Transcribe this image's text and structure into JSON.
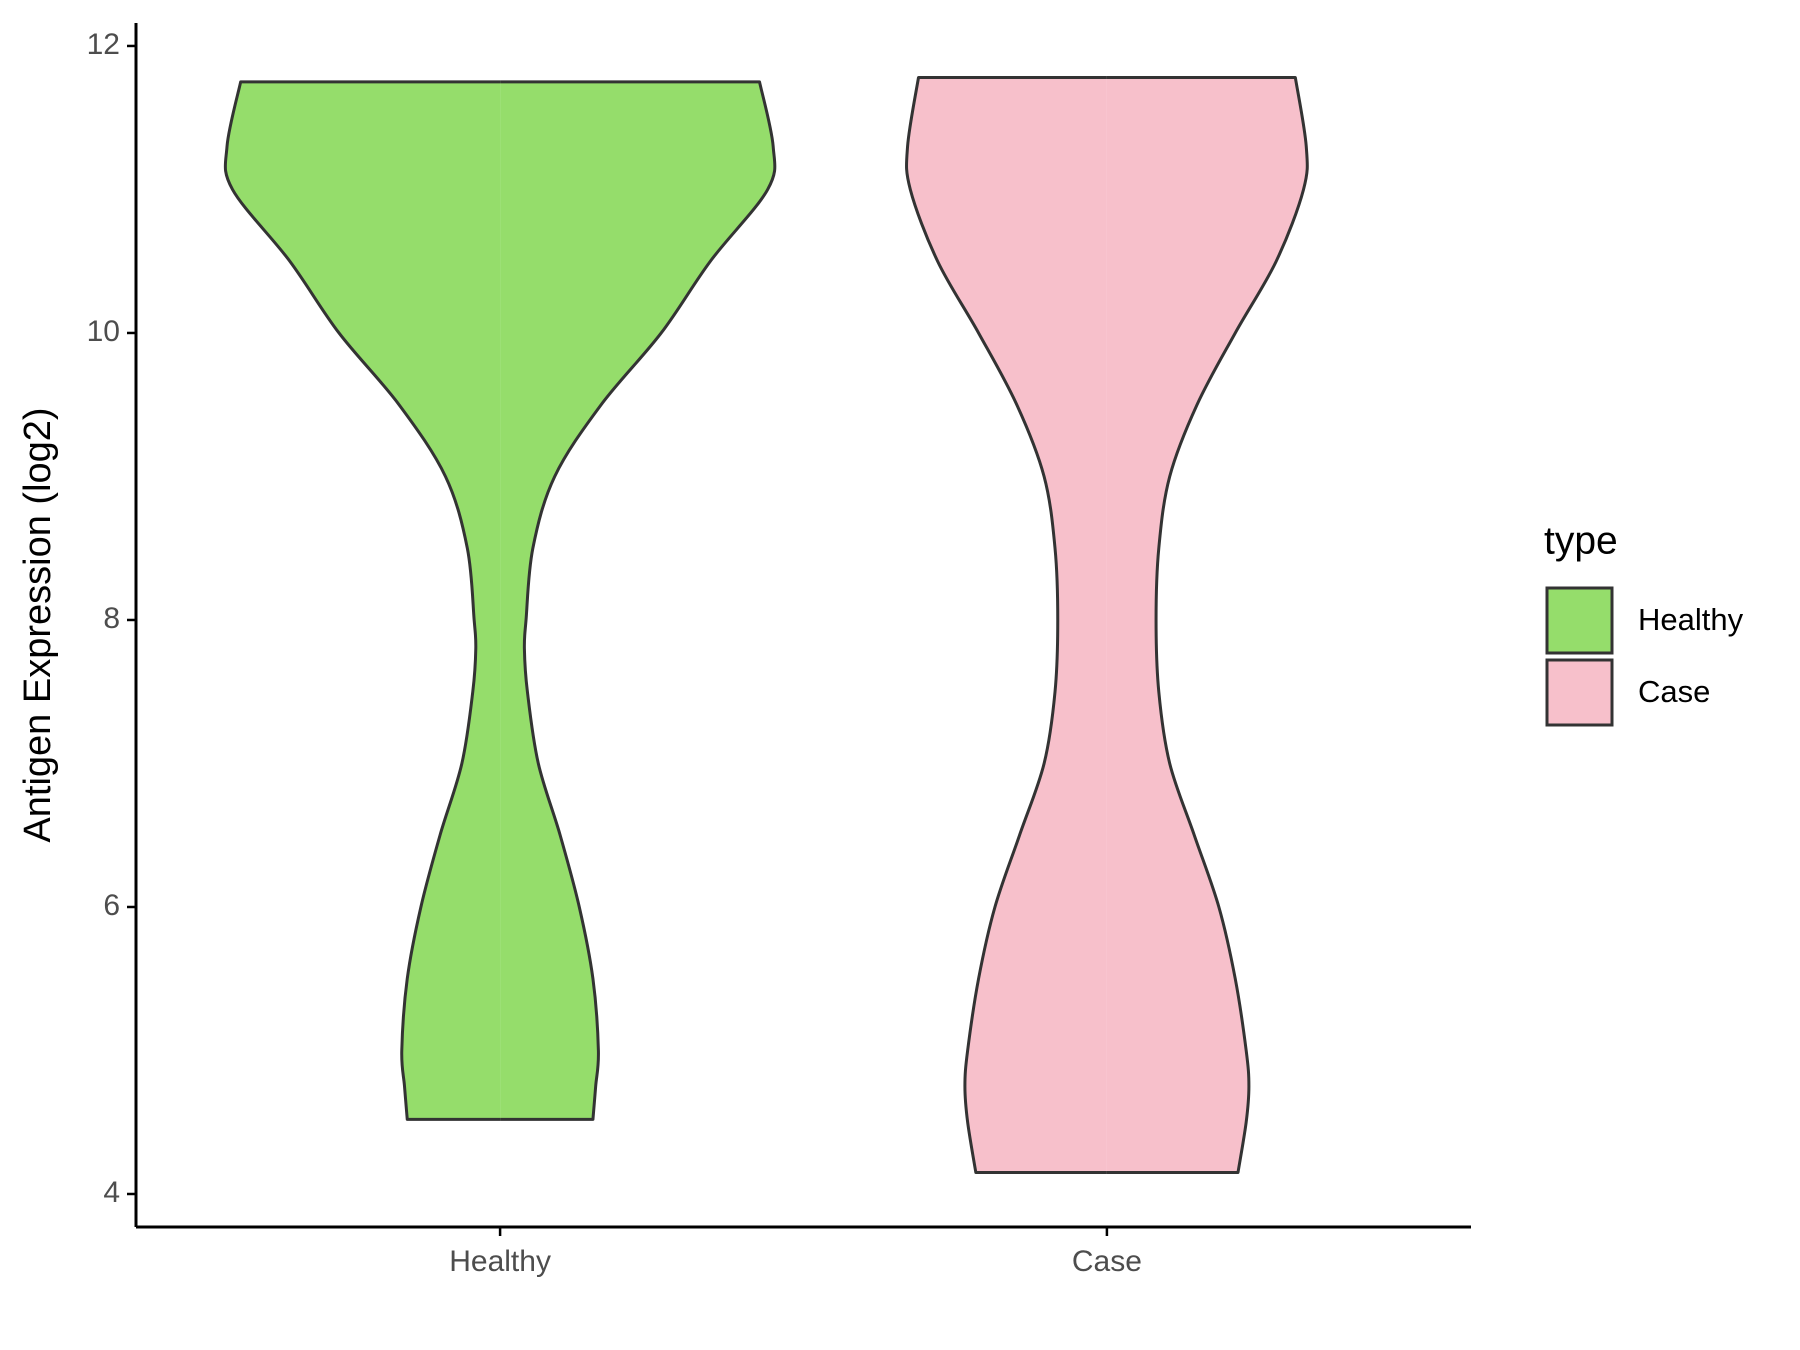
{
  "chart_data": {
    "type": "violin",
    "y_label": "Antigen Expression (log2)",
    "legend_title": "type",
    "categories": [
      "Healthy",
      "Case"
    ],
    "ylim": [
      3.77,
      12.16
    ],
    "yticks": [
      4,
      6,
      8,
      10,
      12
    ],
    "xlim": [
      0.4,
      2.6
    ],
    "max_half_width": 0.45,
    "legend": "right",
    "series": [
      {
        "name": "Healthy",
        "color": "#95dd6b",
        "y": [
          11.75,
          11.3,
          11,
          10.5,
          10,
          9.5,
          9,
          8.5,
          8,
          7.8,
          7.5,
          7,
          6.5,
          6,
          5.5,
          5,
          4.75,
          4.52
        ],
        "widths": [
          0.95,
          1.0,
          0.98,
          0.77,
          0.59,
          0.37,
          0.2,
          0.12,
          0.095,
          0.089,
          0.1,
          0.14,
          0.22,
          0.29,
          0.34,
          0.36,
          0.35,
          0.34
        ]
      },
      {
        "name": "Case",
        "color": "#f7c0cb",
        "y": [
          11.78,
          11.3,
          11,
          10.5,
          10,
          9.5,
          9,
          8.5,
          8,
          7.5,
          7,
          6.5,
          6,
          5.5,
          5,
          4.75,
          4.5,
          4.15
        ],
        "widths": [
          0.69,
          0.73,
          0.72,
          0.62,
          0.47,
          0.33,
          0.23,
          0.19,
          0.18,
          0.19,
          0.23,
          0.32,
          0.41,
          0.47,
          0.51,
          0.52,
          0.51,
          0.48
        ]
      }
    ]
  }
}
